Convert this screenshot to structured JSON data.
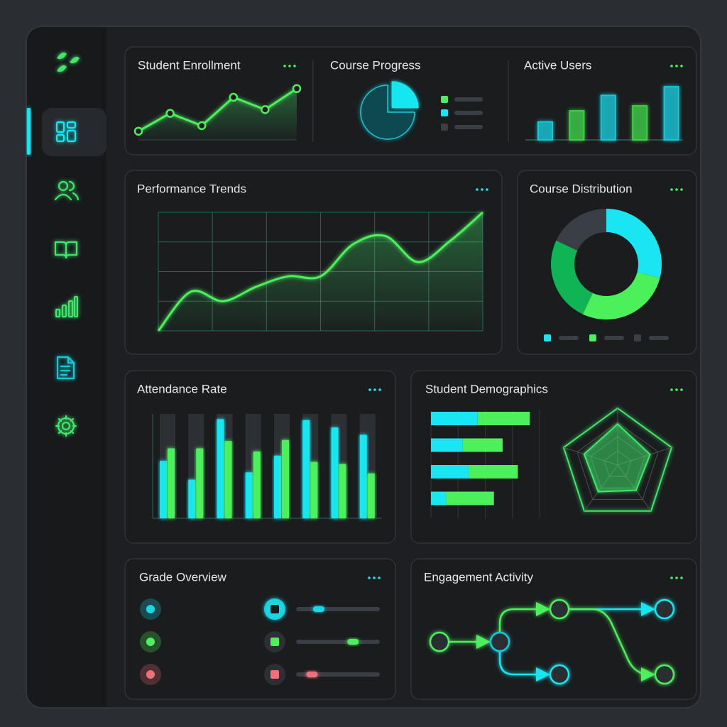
{
  "widgets": [
    {
      "title": "Student Enrollment",
      "chart": {
        "type": "line",
        "values": [
          14,
          43,
          23,
          69,
          49,
          83
        ],
        "ylim": [
          0,
          100
        ],
        "color": "#4cf05a",
        "markers": true
      }
    },
    {
      "title": "Course Progress",
      "chart": {
        "type": "pie",
        "values": [
          25,
          75
        ],
        "colors": [
          "#19e6f0",
          "#0f4a4f"
        ]
      }
    },
    {
      "title": "Active Users",
      "chart": {
        "type": "bar",
        "values": [
          29,
          47,
          72,
          55,
          86
        ],
        "ylim": [
          0,
          100
        ],
        "colors": [
          "#19c9d8",
          "#3fd04a"
        ]
      }
    },
    {
      "title": "Performance Trends",
      "chart": {
        "type": "line",
        "values": [
          0,
          33,
          25,
          37,
          46,
          46,
          73,
          80,
          58,
          76,
          100
        ],
        "ylim": [
          0,
          100
        ],
        "color": "#4cf05a",
        "smooth": true,
        "grid": true
      }
    },
    {
      "title": "Course Distribution",
      "chart": {
        "type": "donut",
        "values": [
          29,
          28,
          25,
          18
        ],
        "colors": [
          "#19e6f0",
          "#4cf05a",
          "#0fb554",
          "#3a3f45"
        ]
      }
    },
    {
      "title": "Attendance Rate",
      "chart": {
        "type": "grouped-bar",
        "ylim": [
          0,
          100
        ],
        "series": [
          {
            "color": "#19e6f0",
            "values": [
              55,
              37,
              95,
              44,
              60,
              94,
              87,
              80
            ]
          },
          {
            "color": "#4cf05a",
            "values": [
              67,
              67,
              74,
              64,
              75,
              54,
              52,
              43
            ]
          }
        ]
      }
    },
    {
      "title": "Student Demographics",
      "chart": {
        "type": "stacked-hbar",
        "xlim": [
          0,
          100
        ],
        "series": [
          {
            "color": "#19e6f0",
            "values": [
              43,
              29,
              35,
              14
            ]
          },
          {
            "color": "#4cf05a",
            "values": [
              48,
              37,
              45,
              44
            ]
          }
        ],
        "radar": {
          "values": [
            72,
            60,
            55,
            58,
            62
          ],
          "rlim": [
            0,
            100
          ],
          "color": "#3fe86a"
        }
      }
    },
    {
      "title": "Grade Overview",
      "chart": {
        "type": "progress",
        "values": [
          27,
          68,
          19
        ],
        "xlim": [
          0,
          100
        ],
        "colors": [
          "#19d8e6",
          "#4cf05a",
          "#f0707a"
        ]
      }
    },
    {
      "title": "Engagement Activity",
      "chart": {
        "type": "flow"
      }
    }
  ]
}
